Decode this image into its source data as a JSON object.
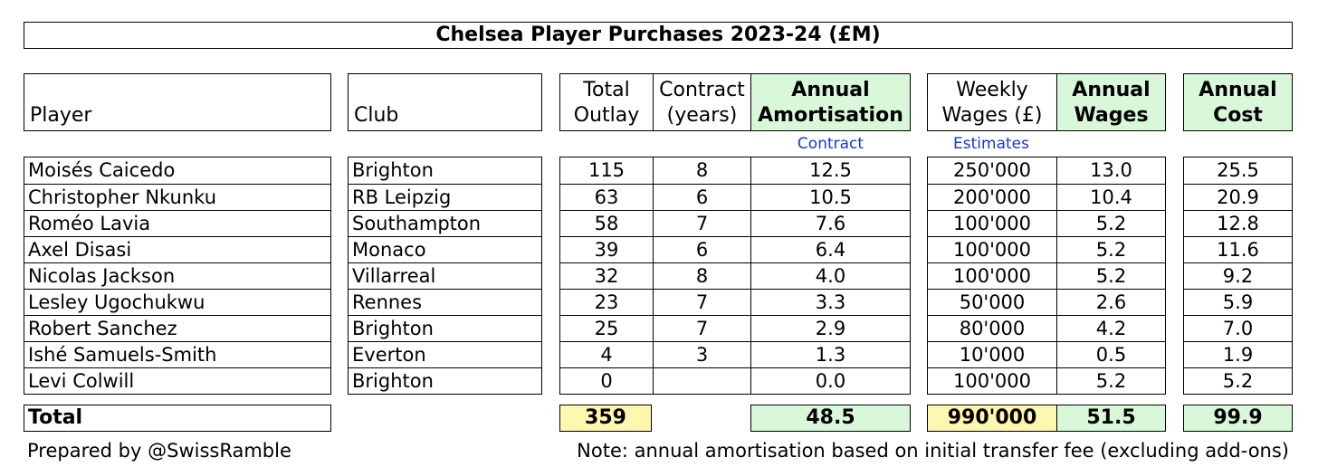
{
  "chart_data": {
    "type": "table",
    "title": "Chelsea Player Purchases 2023-24 (£M)",
    "headers": {
      "player": "Player",
      "club": "Club",
      "outlay": [
        "Total",
        "Outlay"
      ],
      "contract": [
        "Contract",
        "(years)"
      ],
      "amortisation": [
        "Annual",
        "Amortisation"
      ],
      "weekly": [
        "Weekly",
        "Wages (£)"
      ],
      "annual_wages": [
        "Annual",
        "Wages"
      ],
      "annual_cost": [
        "Annual",
        "Cost"
      ]
    },
    "subnotes": {
      "contract": "Contract",
      "estimates": "Estimates"
    },
    "rows": [
      {
        "player": "Moisés Caicedo",
        "club": "Brighton",
        "outlay": "115",
        "contract": "8",
        "amortisation": "12.5",
        "weekly": "250'000",
        "annual_wages": "13.0",
        "annual_cost": "25.5"
      },
      {
        "player": "Christopher Nkunku",
        "club": "RB Leipzig",
        "outlay": "63",
        "contract": "6",
        "amortisation": "10.5",
        "weekly": "200'000",
        "annual_wages": "10.4",
        "annual_cost": "20.9"
      },
      {
        "player": "Roméo Lavia",
        "club": "Southampton",
        "outlay": "58",
        "contract": "7",
        "amortisation": "7.6",
        "weekly": "100'000",
        "annual_wages": "5.2",
        "annual_cost": "12.8"
      },
      {
        "player": "Axel Disasi",
        "club": "Monaco",
        "outlay": "39",
        "contract": "6",
        "amortisation": "6.4",
        "weekly": "100'000",
        "annual_wages": "5.2",
        "annual_cost": "11.6"
      },
      {
        "player": "Nicolas Jackson",
        "club": "Villarreal",
        "outlay": "32",
        "contract": "8",
        "amortisation": "4.0",
        "weekly": "100'000",
        "annual_wages": "5.2",
        "annual_cost": "9.2"
      },
      {
        "player": "Lesley Ugochukwu",
        "club": "Rennes",
        "outlay": "23",
        "contract": "7",
        "amortisation": "3.3",
        "weekly": "50'000",
        "annual_wages": "2.6",
        "annual_cost": "5.9"
      },
      {
        "player": "Robert Sanchez",
        "club": "Brighton",
        "outlay": "25",
        "contract": "7",
        "amortisation": "2.9",
        "weekly": "80'000",
        "annual_wages": "4.2",
        "annual_cost": "7.0"
      },
      {
        "player": "Ishé Samuels-Smith",
        "club": "Everton",
        "outlay": "4",
        "contract": "3",
        "amortisation": "1.3",
        "weekly": "10'000",
        "annual_wages": "0.5",
        "annual_cost": "1.9"
      },
      {
        "player": "Levi Colwill",
        "club": "Brighton",
        "outlay": "0",
        "contract": "",
        "amortisation": "0.0",
        "weekly": "100'000",
        "annual_wages": "5.2",
        "annual_cost": "5.2"
      }
    ],
    "totals": {
      "label": "Total",
      "outlay": "359",
      "amortisation": "48.5",
      "weekly": "990'000",
      "annual_wages": "51.5",
      "annual_cost": "99.9"
    },
    "footer": {
      "credit": "Prepared by @SwissRamble",
      "note": "Note: annual amortisation based on initial transfer fee (excluding add-ons)"
    },
    "colors": {
      "highlight_green": "#d9f7d9",
      "highlight_yellow": "#fff7b0",
      "note_blue": "#1a37c8"
    }
  }
}
